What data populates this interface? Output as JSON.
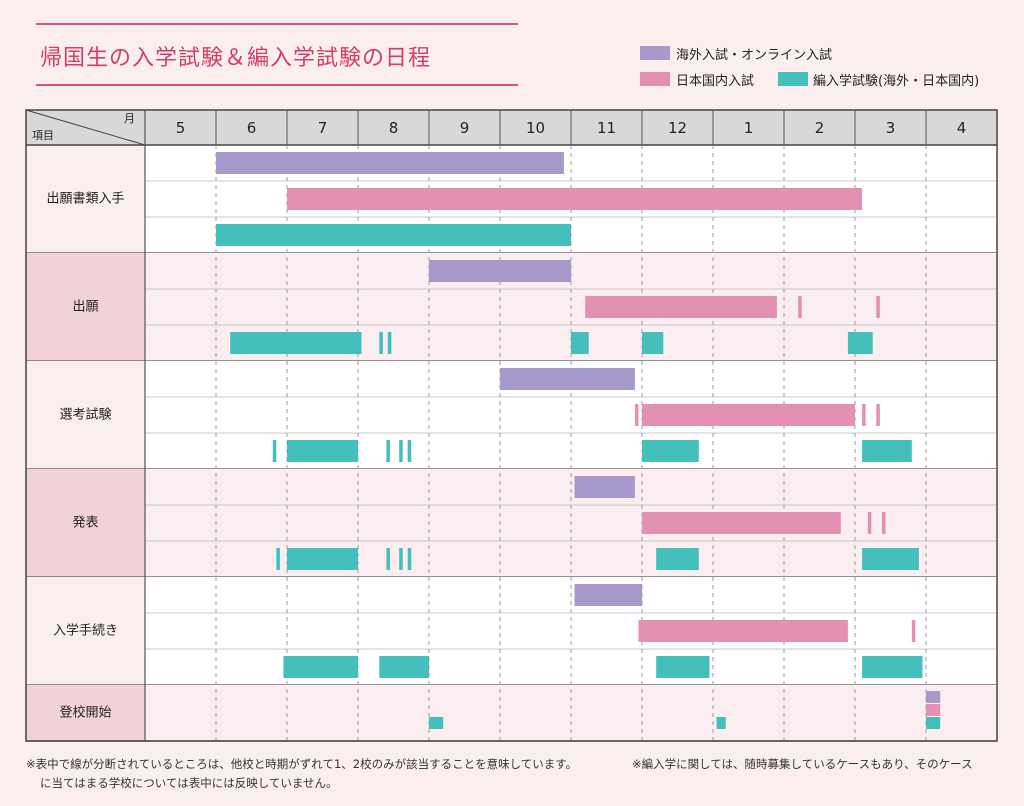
{
  "title": "帰国生の入学試験＆編入学試験の日程",
  "legend": [
    {
      "label": "海外入試・オンライン入試",
      "color": "#a79acb"
    },
    {
      "label": "日本国内入試",
      "color": "#e291b3"
    },
    {
      "label": "編入学試験(海外・日本国内)",
      "color": "#45bfbc"
    }
  ],
  "header": {
    "month_label": "月",
    "item_label": "項目"
  },
  "notes": [
    "※表中で線が分断されているところは、他校と時期がずれて1、2校のみが該当することを意味しています。",
    "※編入学に関しては、随時募集しているケースもあり、そのケース",
    "に当てはまる学校については表中には反映していません。"
  ],
  "chart_data": {
    "type": "gantt",
    "months": [
      "5",
      "6",
      "7",
      "8",
      "9",
      "10",
      "11",
      "12",
      "1",
      "2",
      "3",
      "4"
    ],
    "series": [
      {
        "name": "海外入試・オンライン入試",
        "color": "#a79acb"
      },
      {
        "name": "日本国内入試",
        "color": "#e291b3"
      },
      {
        "name": "編入学試験(海外・日本国内)",
        "color": "#45bfbc"
      }
    ],
    "categories": [
      {
        "label": "出願書類入手",
        "rows": [
          [
            [
              1.0,
              5.9
            ]
          ],
          [
            [
              2.0,
              10.1
            ]
          ],
          [
            [
              1.0,
              6.0
            ]
          ]
        ]
      },
      {
        "label": "出願",
        "rows": [
          [
            [
              4.0,
              6.0
            ]
          ],
          [
            [
              6.2,
              8.9
            ],
            [
              9.2,
              9.25
            ],
            [
              10.3,
              10.35
            ]
          ],
          [
            [
              1.2,
              3.05
            ],
            [
              3.3,
              3.35
            ],
            [
              3.42,
              3.47
            ],
            [
              6.0,
              6.25
            ],
            [
              7.0,
              7.3
            ],
            [
              9.9,
              10.25
            ]
          ]
        ]
      },
      {
        "label": "選考試験",
        "rows": [
          [
            [
              5.0,
              6.9
            ]
          ],
          [
            [
              6.9,
              6.95
            ],
            [
              7.0,
              10.0
            ],
            [
              10.1,
              10.15
            ],
            [
              10.3,
              10.35
            ]
          ],
          [
            [
              1.8,
              1.85
            ],
            [
              2.0,
              3.0
            ],
            [
              3.4,
              3.45
            ],
            [
              3.58,
              3.63
            ],
            [
              3.7,
              3.75
            ],
            [
              7.0,
              7.8
            ],
            [
              10.1,
              10.8
            ]
          ]
        ]
      },
      {
        "label": "発表",
        "rows": [
          [
            [
              6.05,
              6.9
            ]
          ],
          [
            [
              7.0,
              9.8
            ],
            [
              10.18,
              10.23
            ],
            [
              10.38,
              10.43
            ]
          ],
          [
            [
              1.85,
              1.9
            ],
            [
              2.0,
              3.0
            ],
            [
              3.4,
              3.45
            ],
            [
              3.58,
              3.63
            ],
            [
              3.7,
              3.75
            ],
            [
              7.2,
              7.8
            ],
            [
              10.1,
              10.9
            ]
          ]
        ]
      },
      {
        "label": "入学手続き",
        "rows": [
          [
            [
              6.05,
              7.0
            ]
          ],
          [
            [
              6.95,
              9.9
            ],
            [
              10.8,
              10.85
            ]
          ],
          [
            [
              1.95,
              3.0
            ],
            [
              3.3,
              4.0
            ],
            [
              7.2,
              7.95
            ],
            [
              10.1,
              10.95
            ]
          ]
        ]
      },
      {
        "label": "登校開始",
        "rows": [
          [
            [
              11.0,
              11.2
            ]
          ],
          [
            [
              11.0,
              11.2
            ]
          ],
          [
            [
              4.0,
              4.2
            ],
            [
              8.05,
              8.18
            ],
            [
              11.0,
              11.2
            ]
          ]
        ]
      }
    ]
  }
}
